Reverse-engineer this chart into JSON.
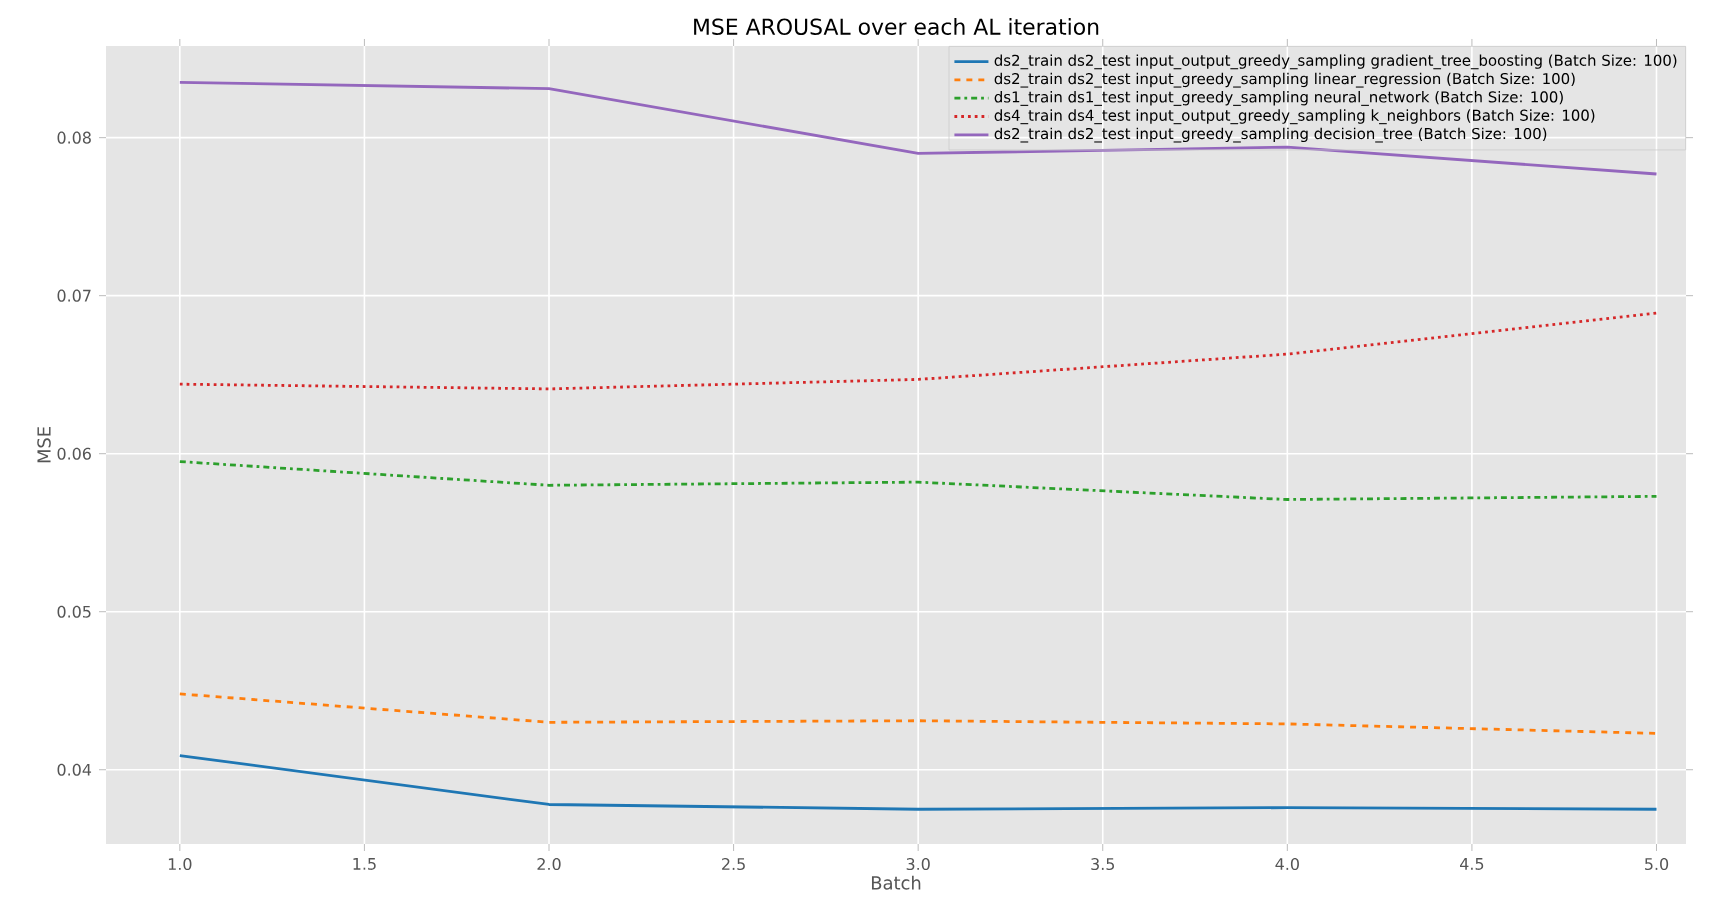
{
  "chart_data": {
    "type": "line",
    "title": "MSE AROUSAL over each AL iteration",
    "xlabel": "Batch",
    "ylabel": "MSE",
    "x": [
      1,
      2,
      3,
      4,
      5
    ],
    "series": [
      {
        "name": "ds2_train  ds2_test   input_output_greedy_sampling       gradient_tree_boosting       (Batch Size: 100)",
        "color": "#1f77b4",
        "line_style": "solid",
        "values": [
          0.0409,
          0.0378,
          0.0375,
          0.0376,
          0.0375
        ]
      },
      {
        "name": "ds2_train  ds2_test   input_greedy_sampling              linear_regression            (Batch Size: 100)",
        "color": "#ff7f0e",
        "line_style": "dashed",
        "values": [
          0.0448,
          0.043,
          0.0431,
          0.0429,
          0.0423
        ]
      },
      {
        "name": "ds1_train  ds1_test   input_greedy_sampling              neural_network               (Batch Size: 100)",
        "color": "#2ca02c",
        "line_style": "dashdot",
        "values": [
          0.0595,
          0.058,
          0.0582,
          0.0571,
          0.0573
        ]
      },
      {
        "name": "ds4_train  ds4_test   input_output_greedy_sampling       k_neighbors                  (Batch Size: 100)",
        "color": "#d62728",
        "line_style": "dotted",
        "values": [
          0.0644,
          0.0641,
          0.0647,
          0.0663,
          0.0689
        ]
      },
      {
        "name": "ds2_train  ds2_test   input_greedy_sampling              decision_tree                (Batch Size: 100)",
        "color": "#9467bd",
        "line_style": "solid",
        "values": [
          0.0835,
          0.0831,
          0.079,
          0.0794,
          0.0777
        ]
      }
    ],
    "xlim": [
      0.8,
      5.08
    ],
    "ylim": [
      0.0353,
      0.0858
    ],
    "xticks": [
      {
        "value": 1,
        "label": "1.0"
      },
      {
        "value": 1.5,
        "label": "1.5"
      },
      {
        "value": 2,
        "label": "2.0"
      },
      {
        "value": 2.5,
        "label": "2.5"
      },
      {
        "value": 3,
        "label": "3.0"
      },
      {
        "value": 3.5,
        "label": "3.5"
      },
      {
        "value": 4,
        "label": "4.0"
      },
      {
        "value": 4.5,
        "label": "4.5"
      },
      {
        "value": 5,
        "label": "5.0"
      }
    ],
    "yticks": [
      0.04,
      0.05,
      0.06,
      0.07,
      0.08
    ],
    "grid": true,
    "legend": "top right",
    "marker": "none"
  }
}
